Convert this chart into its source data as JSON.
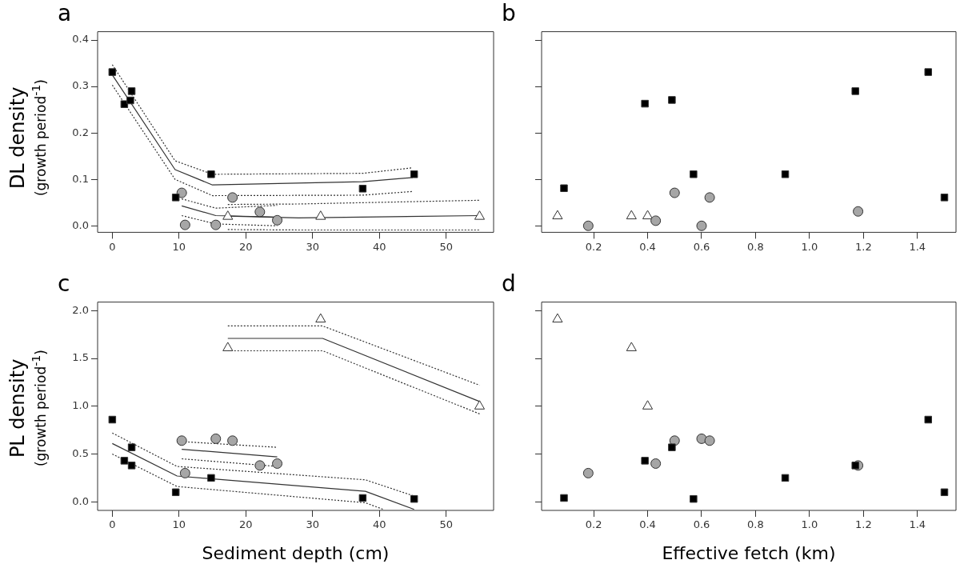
{
  "chart_data": [
    {
      "type": "scatter",
      "title": "a",
      "ylabel": "DL density (growth period$^{-1}$)",
      "xlim": [
        -2.2,
        57.1
      ],
      "xticks": [
        0,
        10,
        20,
        30,
        40,
        50
      ],
      "ylim": [
        -0.014,
        0.418
      ],
      "yticks": [
        {
          "value": 0,
          "label": "0.0"
        },
        0.1,
        0.2,
        0.3,
        0.4
      ],
      "grid": false,
      "legend": false,
      "series": [
        {
          "type": "line",
          "color": "#333333",
          "line_style": "solid",
          "x": [
            0,
            9.4,
            15,
            37.5,
            45
          ],
          "values": [
            0.325,
            0.121,
            0.088,
            0.095,
            0.104
          ]
        },
        {
          "type": "line",
          "color": "#333333",
          "line_style": "dotted",
          "x": [
            0,
            9.4,
            15,
            37.5,
            45
          ],
          "values": [
            0.303,
            0.1,
            0.065,
            0.066,
            0.074
          ]
        },
        {
          "type": "line",
          "color": "#333333",
          "line_style": "dotted",
          "x": [
            0,
            9.4,
            15,
            37.5,
            45
          ],
          "values": [
            0.347,
            0.14,
            0.111,
            0.113,
            0.125
          ]
        },
        {
          "type": "line",
          "color": "#333333",
          "line_style": "solid",
          "x": [
            10.4,
            15.5,
            24.7
          ],
          "values": [
            0.043,
            0.022,
            0.019
          ]
        },
        {
          "type": "line",
          "color": "#333333",
          "line_style": "dotted",
          "x": [
            10.4,
            15.5,
            24.7
          ],
          "values": [
            0.022,
            0.004,
            0
          ]
        },
        {
          "type": "line",
          "color": "#333333",
          "line_style": "dotted",
          "x": [
            10.4,
            15.5,
            24.7
          ],
          "values": [
            0.058,
            0.038,
            0.044
          ]
        },
        {
          "type": "line",
          "color": "#333333",
          "line_style": "solid",
          "x": [
            17.3,
            27.9,
            55
          ],
          "values": [
            0.021,
            0.017,
            0.022
          ]
        },
        {
          "type": "line",
          "color": "#333333",
          "line_style": "dotted",
          "x": [
            17.3,
            27.9,
            55
          ],
          "values": [
            -0.008,
            -0.009,
            -0.009
          ]
        },
        {
          "type": "line",
          "color": "#333333",
          "line_style": "dotted",
          "x": [
            17.3,
            27.9,
            55
          ],
          "values": [
            0.046,
            0.047,
            0.055
          ]
        },
        {
          "type": "scatter",
          "marker": "square",
          "color": "#000000",
          "x": [
            0,
            1.8,
            2.9,
            2.7,
            9.5,
            14.8,
            37.5,
            45.2
          ],
          "values": [
            0.331,
            0.262,
            0.29,
            0.27,
            0.061,
            0.111,
            0.08,
            0.111
          ]
        },
        {
          "type": "scatter",
          "marker": "circle",
          "color": "#a6a6a6",
          "x": [
            10.4,
            10.9,
            15.5,
            18,
            22.1,
            24.7
          ],
          "values": [
            0.071,
            0.002,
            0.002,
            0.061,
            0.03,
            0.012
          ]
        },
        {
          "type": "scatter",
          "marker": "triangle",
          "color": "#ffffff",
          "x": [
            17.3,
            31.2,
            55
          ],
          "values": [
            0.02,
            0.02,
            0.02
          ]
        }
      ]
    },
    {
      "type": "scatter",
      "title": "b",
      "xlim": [
        0.007,
        1.543
      ],
      "xticks": [
        0.2,
        0.4,
        0.6,
        0.8,
        {
          "value": 1,
          "label": "1.0"
        },
        1.2,
        1.4
      ],
      "ylim": [
        -0.014,
        0.418
      ],
      "yticks": [
        {
          "value": 0,
          "label": null
        },
        {
          "value": 0.1,
          "label": null
        },
        {
          "value": 0.2,
          "label": null
        },
        {
          "value": 0.3,
          "label": null
        },
        {
          "value": 0.4,
          "label": null
        }
      ],
      "grid": false,
      "legend": false,
      "tick_labels": "x",
      "series": [
        {
          "type": "scatter",
          "marker": "square",
          "color": "#000000",
          "x": [
            0.09,
            0.39,
            0.49,
            0.57,
            0.91,
            1.17,
            1.44,
            1.5
          ],
          "values": [
            0.081,
            0.263,
            0.271,
            0.111,
            0.111,
            0.29,
            0.331,
            0.061
          ]
        },
        {
          "type": "scatter",
          "marker": "circle",
          "color": "#a6a6a6",
          "x": [
            0.18,
            0.43,
            0.5,
            0.6,
            0.63,
            1.18
          ],
          "values": [
            0,
            0.011,
            0.071,
            0,
            0.061,
            0.031
          ]
        },
        {
          "type": "scatter",
          "marker": "triangle",
          "color": "#ffffff",
          "x": [
            0.066,
            0.34,
            0.4
          ],
          "values": [
            0.021,
            0.021,
            0.021
          ]
        }
      ]
    },
    {
      "type": "scatter",
      "title": "c",
      "xlabel": "Sediment depth (cm)",
      "ylabel": "PL density (growth period$^{-1}$)",
      "xlim": [
        -2.2,
        57.1
      ],
      "xticks": [
        0,
        10,
        20,
        30,
        40,
        50
      ],
      "ylim": [
        -0.09,
        2.09
      ],
      "yticks": [
        {
          "value": 0,
          "label": "0.0"
        },
        0.5,
        {
          "value": 1,
          "label": "1.0"
        },
        1.5,
        {
          "value": 2,
          "label": "2.0"
        }
      ],
      "grid": false,
      "legend": false,
      "series": [
        {
          "type": "line",
          "color": "#333333",
          "line_style": "solid",
          "x": [
            0,
            9.7,
            37.9,
            45.2
          ],
          "values": [
            0.61,
            0.27,
            0.11,
            -0.08
          ]
        },
        {
          "type": "line",
          "color": "#333333",
          "line_style": "dotted",
          "x": [
            0,
            9.7,
            37.9,
            40.6
          ],
          "values": [
            0.5,
            0.16,
            -0.01,
            -0.08
          ]
        },
        {
          "type": "line",
          "color": "#333333",
          "line_style": "dotted",
          "x": [
            0,
            9.7,
            37.9,
            45.2
          ],
          "values": [
            0.72,
            0.37,
            0.23,
            0.06
          ]
        },
        {
          "type": "line",
          "color": "#333333",
          "line_style": "solid",
          "x": [
            10.4,
            24.7
          ],
          "values": [
            0.55,
            0.47
          ]
        },
        {
          "type": "line",
          "color": "#333333",
          "line_style": "dotted",
          "x": [
            10.4,
            24.7
          ],
          "values": [
            0.45,
            0.37
          ]
        },
        {
          "type": "line",
          "color": "#333333",
          "line_style": "dotted",
          "x": [
            10.4,
            24.7
          ],
          "values": [
            0.63,
            0.57
          ]
        },
        {
          "type": "line",
          "color": "#333333",
          "line_style": "solid",
          "x": [
            17.3,
            31.5,
            55
          ],
          "values": [
            1.71,
            1.71,
            1.05
          ]
        },
        {
          "type": "line",
          "color": "#333333",
          "line_style": "dotted",
          "x": [
            17.3,
            31.5,
            55
          ],
          "values": [
            1.58,
            1.58,
            0.92
          ]
        },
        {
          "type": "line",
          "color": "#333333",
          "line_style": "dotted",
          "x": [
            17.3,
            31.5,
            55
          ],
          "values": [
            1.84,
            1.84,
            1.22
          ]
        },
        {
          "type": "scatter",
          "marker": "square",
          "color": "#000000",
          "x": [
            0,
            2.9,
            1.8,
            2.9,
            9.5,
            14.8,
            37.5,
            45.2
          ],
          "values": [
            0.86,
            0.57,
            0.43,
            0.38,
            0.1,
            0.25,
            0.04,
            0.03
          ]
        },
        {
          "type": "scatter",
          "marker": "circle",
          "color": "#a6a6a6",
          "x": [
            10.4,
            10.9,
            15.5,
            18,
            22.1,
            24.7
          ],
          "values": [
            0.64,
            0.3,
            0.66,
            0.64,
            0.38,
            0.4
          ]
        },
        {
          "type": "scatter",
          "marker": "triangle",
          "color": "#ffffff",
          "x": [
            17.3,
            31.2,
            55
          ],
          "values": [
            1.61,
            1.91,
            1
          ]
        }
      ]
    },
    {
      "type": "scatter",
      "title": "d",
      "xlabel": "Effective fetch (km)",
      "xlim": [
        0.007,
        1.543
      ],
      "xticks": [
        0.2,
        0.4,
        0.6,
        0.8,
        {
          "value": 1,
          "label": "1.0"
        },
        1.2,
        1.4
      ],
      "ylim": [
        -0.09,
        2.09
      ],
      "yticks": [
        {
          "value": 0,
          "label": null
        },
        {
          "value": 0.5,
          "label": null
        },
        {
          "value": 1,
          "label": null
        },
        {
          "value": 1.5,
          "label": null
        },
        {
          "value": 2,
          "label": null
        }
      ],
      "grid": false,
      "legend": false,
      "tick_labels": "x",
      "series": [
        {
          "type": "scatter",
          "marker": "square",
          "color": "#000000",
          "x": [
            0.09,
            0.39,
            0.49,
            0.57,
            0.91,
            1.17,
            1.44,
            1.5
          ],
          "values": [
            0.04,
            0.43,
            0.57,
            0.03,
            0.25,
            0.38,
            0.86,
            0.1
          ]
        },
        {
          "type": "scatter",
          "marker": "circle",
          "color": "#a6a6a6",
          "x": [
            0.18,
            0.43,
            0.5,
            0.6,
            0.63,
            1.18
          ],
          "values": [
            0.3,
            0.4,
            0.64,
            0.66,
            0.64,
            0.38
          ]
        },
        {
          "type": "scatter",
          "marker": "triangle",
          "color": "#ffffff",
          "x": [
            0.066,
            0.34,
            0.4
          ],
          "values": [
            1.91,
            1.61,
            1
          ]
        }
      ]
    }
  ]
}
